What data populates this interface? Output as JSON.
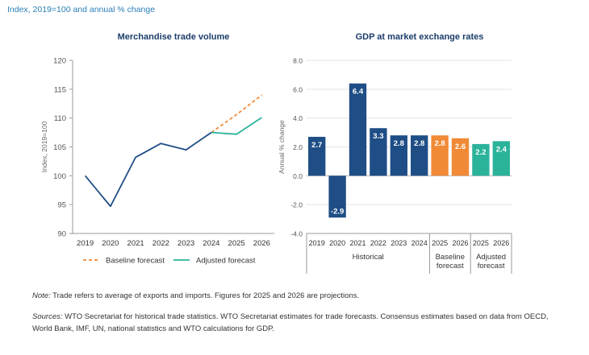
{
  "header": {
    "subtitle": "Index, 2019=100 and annual % change"
  },
  "notes": {
    "note_label": "Note:",
    "note_text": " Trade refers to average of exports and imports. Figures for 2025 and 2026 are projections.",
    "sources_label": "Sources:",
    "sources_text": " WTO Secretariat for historical trade statistics. WTO Secretariat estimates for trade forecasts. Consensus estimates based on data from OECD, World Bank, IMF, UN, national statistics and WTO calculations for GDP."
  },
  "colors": {
    "historical": "#1f4e86",
    "baseline": "#f08a37",
    "adjusted": "#2bb39a",
    "axis": "#999999",
    "grid": "#e3e3e3"
  },
  "chart_data": [
    {
      "type": "line",
      "title": "Merchandise trade volume",
      "ylabel": "Index, 2019=100",
      "ylim": [
        90,
        120
      ],
      "yticks": [
        90,
        95,
        100,
        105,
        110,
        115,
        120
      ],
      "categories": [
        "2019",
        "2020",
        "2021",
        "2022",
        "2023",
        "2024",
        "2025",
        "2026"
      ],
      "grid": false,
      "legend_position": "bottom",
      "series": [
        {
          "key": "historical",
          "values": [
            100,
            94.7,
            103.2,
            105.6,
            104.5,
            107.5,
            null,
            null
          ]
        },
        {
          "key": "baseline",
          "name": "Baseline forecast",
          "style": "dashed",
          "values": [
            null,
            null,
            null,
            null,
            null,
            107.5,
            110.6,
            114.0
          ]
        },
        {
          "key": "adjusted",
          "name": "Adjusted forecast",
          "style": "solid",
          "values": [
            null,
            null,
            null,
            null,
            null,
            107.5,
            107.2,
            110.1
          ]
        }
      ]
    },
    {
      "type": "bar",
      "title": "GDP at market exchange rates",
      "ylabel": "Annual % change",
      "ylim": [
        -4.0,
        8.0
      ],
      "yticks": [
        "-4.0",
        "-2.0",
        "0.0",
        "2.0",
        "4.0",
        "6.0",
        "8.0"
      ],
      "grid": true,
      "categories": [
        "2019",
        "2020",
        "2021",
        "2022",
        "2023",
        "2024",
        "2025",
        "2026",
        "2025",
        "2026"
      ],
      "values": [
        2.7,
        -2.9,
        6.4,
        3.3,
        2.8,
        2.8,
        2.8,
        2.6,
        2.2,
        2.4
      ],
      "labels": [
        "2.7",
        "-2.9",
        "6.4",
        "3.3",
        "2.8",
        "2.8",
        "2.8",
        "2.6",
        "2.2",
        "2.4"
      ],
      "groups": [
        "historical",
        "historical",
        "historical",
        "historical",
        "historical",
        "historical",
        "baseline",
        "baseline",
        "adjusted",
        "adjusted"
      ],
      "group_labels": [
        {
          "key": "historical",
          "lines": [
            "Historical"
          ]
        },
        {
          "key": "baseline",
          "lines": [
            "Baseline",
            "forecast"
          ]
        },
        {
          "key": "adjusted",
          "lines": [
            "Adjusted",
            "forecast"
          ]
        }
      ]
    }
  ]
}
